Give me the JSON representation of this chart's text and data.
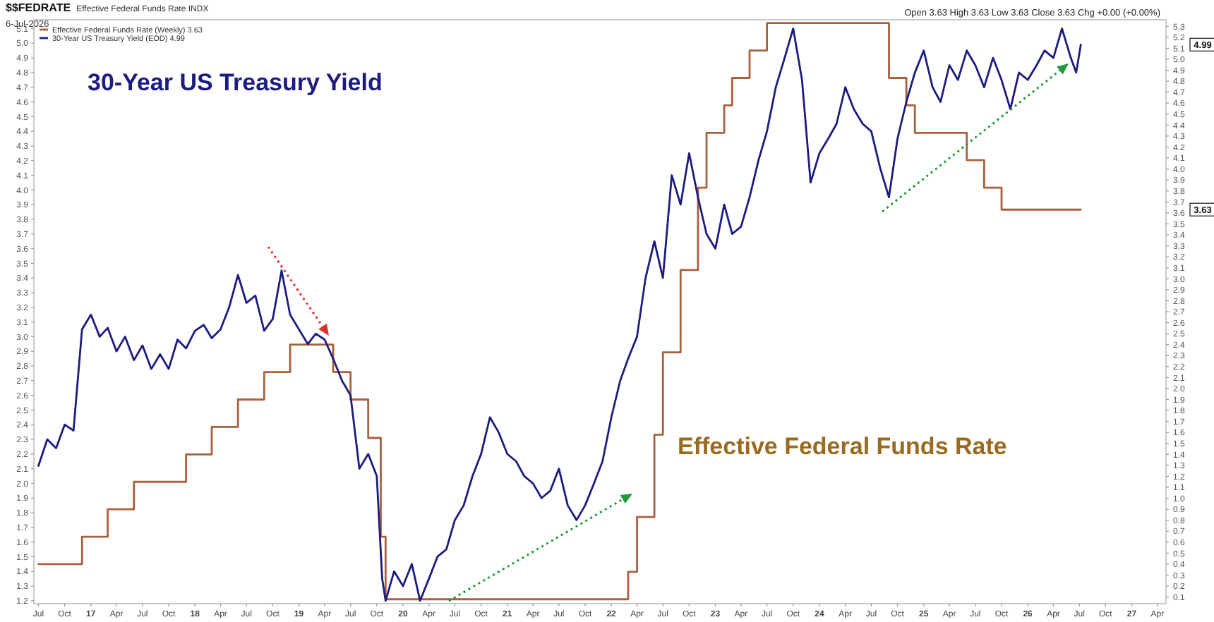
{
  "chart_data": {
    "type": "line",
    "title": "$$FEDRATE",
    "subtitle": "Effective Federal Funds Rate INDX",
    "annotations": [
      "6-Jul-2026",
      "Open 3.63 High 3.63 Low 3.63 Close 3.63 Chg +0.00 (+0.00%)",
      "30-Year US Treasury Yield",
      "Effective Federal Funds Rate",
      "3.63",
      "4.99"
    ],
    "legend": "top left",
    "grid": false,
    "xlim": [
      "2016-06-15",
      "2027-05-01"
    ],
    "xticks": [
      {
        "value": "2016-07",
        "label": "Jul"
      },
      {
        "value": "2016-10",
        "label": "Oct"
      },
      {
        "value": "2017-01",
        "label": "17"
      },
      {
        "value": "2017-04",
        "label": "Apr"
      },
      {
        "value": "2017-07",
        "label": "Jul"
      },
      {
        "value": "2017-10",
        "label": "Oct"
      },
      {
        "value": "2018-01",
        "label": "18"
      },
      {
        "value": "2018-04",
        "label": "Apr"
      },
      {
        "value": "2018-07",
        "label": "Jul"
      },
      {
        "value": "2018-10",
        "label": "Oct"
      },
      {
        "value": "2019-01",
        "label": "19"
      },
      {
        "value": "2019-04",
        "label": "Apr"
      },
      {
        "value": "2019-07",
        "label": "Jul"
      },
      {
        "value": "2019-10",
        "label": "Oct"
      },
      {
        "value": "2020-01",
        "label": "20"
      },
      {
        "value": "2020-04",
        "label": "Apr"
      },
      {
        "value": "2020-07",
        "label": "Jul"
      },
      {
        "value": "2020-10",
        "label": "Oct"
      },
      {
        "value": "2021-01",
        "label": "21"
      },
      {
        "value": "2021-04",
        "label": "Apr"
      },
      {
        "value": "2021-07",
        "label": "Jul"
      },
      {
        "value": "2021-10",
        "label": "Oct"
      },
      {
        "value": "2022-01",
        "label": "22"
      },
      {
        "value": "2022-04",
        "label": "Apr"
      },
      {
        "value": "2022-07",
        "label": "Jul"
      },
      {
        "value": "2022-10",
        "label": "Oct"
      },
      {
        "value": "2023-01",
        "label": "23"
      },
      {
        "value": "2023-04",
        "label": "Apr"
      },
      {
        "value": "2023-07",
        "label": "Jul"
      },
      {
        "value": "2023-10",
        "label": "Oct"
      },
      {
        "value": "2024-01",
        "label": "24"
      },
      {
        "value": "2024-04",
        "label": "Apr"
      },
      {
        "value": "2024-07",
        "label": "Jul"
      },
      {
        "value": "2024-10",
        "label": "Oct"
      },
      {
        "value": "2025-01",
        "label": "25"
      },
      {
        "value": "2025-04",
        "label": "Apr"
      },
      {
        "value": "2025-07",
        "label": "Jul"
      },
      {
        "value": "2025-10",
        "label": "Oct"
      },
      {
        "value": "2026-01",
        "label": "26"
      },
      {
        "value": "2026-04",
        "label": "Apr"
      },
      {
        "value": "2026-07",
        "label": "Jul"
      },
      {
        "value": "2026-10",
        "label": "Oct"
      },
      {
        "value": "2027-01",
        "label": "27"
      },
      {
        "value": "2027-04",
        "label": "Apr"
      }
    ],
    "ylim": [
      1.18,
      5.16
    ],
    "yticks": [
      1.2,
      1.3,
      1.4,
      1.5,
      1.6,
      1.7,
      1.8,
      1.9,
      {
        "value": 2,
        "label": "2.0"
      },
      2.1,
      2.2,
      2.3,
      2.4,
      2.5,
      2.6,
      2.7,
      2.8,
      2.9,
      {
        "value": 3,
        "label": "3.0"
      },
      3.1,
      3.2,
      3.3,
      3.4,
      3.5,
      3.6,
      3.7,
      3.8,
      3.9,
      {
        "value": 4,
        "label": "4.0"
      },
      4.1,
      4.2,
      4.3,
      4.4,
      4.5,
      4.6,
      4.7,
      4.8,
      4.9,
      {
        "value": 5,
        "label": "5.0"
      },
      5.1
    ],
    "y2lim": [
      0.04,
      5.36
    ],
    "y2ticks": [
      0.1,
      0.2,
      0.3,
      0.4,
      0.5,
      0.6,
      0.7,
      0.8,
      0.9,
      {
        "value": 1,
        "label": "1.0"
      },
      1.1,
      1.2,
      1.3,
      1.4,
      1.5,
      1.6,
      1.7,
      1.8,
      1.9,
      {
        "value": 2,
        "label": "2.0"
      },
      2.1,
      2.2,
      2.3,
      2.4,
      2.5,
      2.6,
      2.7,
      2.8,
      2.9,
      {
        "value": 3,
        "label": "3.0"
      },
      3.1,
      3.2,
      3.3,
      3.4,
      3.5,
      3.6,
      3.7,
      3.8,
      3.9,
      {
        "value": 4,
        "label": "4.0"
      },
      4.1,
      4.2,
      4.3,
      4.4,
      4.5,
      4.6,
      4.7,
      4.8,
      4.9,
      {
        "value": 5,
        "label": "5.0"
      },
      5.1,
      5.2,
      5.3
    ],
    "series": [
      {
        "name": "Effective Federal Funds Rate (Weekly) 3.63",
        "type": "step",
        "axis": "y2",
        "color": "#a9603c",
        "x": [
          "2016-07",
          "2016-12",
          "2017-03",
          "2017-06",
          "2017-12",
          "2018-03",
          "2018-06",
          "2018-09",
          "2018-12",
          "2019-05",
          "2019-07",
          "2019-09",
          "2019-10-15",
          "2019-11",
          "2022-03",
          "2022-04",
          "2022-06",
          "2022-07",
          "2022-09",
          "2022-11",
          "2022-12",
          "2023-02",
          "2023-03",
          "2023-05",
          "2023-07",
          "2024-09",
          "2024-11",
          "2024-12",
          "2025-06",
          "2025-08",
          "2025-10",
          "2026-07-06"
        ],
        "values": [
          0.4,
          0.65,
          0.9,
          1.15,
          1.4,
          1.65,
          1.9,
          2.15,
          2.4,
          2.15,
          1.9,
          1.55,
          0.65,
          0.08,
          0.33,
          0.83,
          1.58,
          2.33,
          3.08,
          3.83,
          4.33,
          4.58,
          4.83,
          5.08,
          5.33,
          4.83,
          4.58,
          4.33,
          4.08,
          3.83,
          3.63,
          3.63
        ]
      },
      {
        "name": "30-Year US Treasury Yield (EOD) 4.99",
        "color": "#1c1c80",
        "x": [
          "2016-07",
          "2016-08",
          "2016-09",
          "2016-10",
          "2016-11",
          "2016-12",
          "2017-01",
          "2017-02",
          "2017-03",
          "2017-04",
          "2017-05",
          "2017-06",
          "2017-07",
          "2017-08",
          "2017-09",
          "2017-10",
          "2017-11",
          "2017-12",
          "2018-01",
          "2018-02",
          "2018-03",
          "2018-04",
          "2018-05",
          "2018-06",
          "2018-07",
          "2018-08",
          "2018-09",
          "2018-10",
          "2018-11",
          "2018-12",
          "2019-01",
          "2019-02",
          "2019-03",
          "2019-04",
          "2019-05",
          "2019-06",
          "2019-07",
          "2019-08",
          "2019-09",
          "2019-10",
          "2019-10-20",
          "2019-11",
          "2019-12",
          "2020-01",
          "2020-02",
          "2020-03",
          "2020-04",
          "2020-05",
          "2020-06",
          "2020-07",
          "2020-08",
          "2020-09",
          "2020-10",
          "2020-11",
          "2020-12",
          "2021-01",
          "2021-02",
          "2021-03",
          "2021-04",
          "2021-05",
          "2021-06",
          "2021-07",
          "2021-08",
          "2021-09",
          "2021-10",
          "2021-11",
          "2021-12",
          "2022-01",
          "2022-02",
          "2022-03",
          "2022-04",
          "2022-05",
          "2022-06",
          "2022-07",
          "2022-08",
          "2022-09",
          "2022-10",
          "2022-11",
          "2022-12",
          "2023-01",
          "2023-02",
          "2023-03",
          "2023-04",
          "2023-05",
          "2023-06",
          "2023-07",
          "2023-08",
          "2023-09",
          "2023-10",
          "2023-11",
          "2023-12",
          "2024-01",
          "2024-02",
          "2024-03",
          "2024-04",
          "2024-05",
          "2024-06",
          "2024-07",
          "2024-08",
          "2024-09",
          "2024-10",
          "2024-11",
          "2024-12",
          "2025-01",
          "2025-02",
          "2025-03",
          "2025-04",
          "2025-05",
          "2025-06",
          "2025-07",
          "2025-08",
          "2025-09",
          "2025-10",
          "2025-11",
          "2025-12",
          "2026-01",
          "2026-02",
          "2026-03",
          "2026-04",
          "2026-05",
          "2026-06",
          "2026-06-20",
          "2026-07-06"
        ],
        "values": [
          2.12,
          2.3,
          2.24,
          2.4,
          2.36,
          3.05,
          3.15,
          3.0,
          3.06,
          2.9,
          3.0,
          2.84,
          2.94,
          2.78,
          2.88,
          2.78,
          2.98,
          2.92,
          3.04,
          3.08,
          2.99,
          3.05,
          3.2,
          3.42,
          3.23,
          3.28,
          3.04,
          3.12,
          3.45,
          3.15,
          3.05,
          2.95,
          3.02,
          2.98,
          2.85,
          2.7,
          2.6,
          2.1,
          2.2,
          2.05,
          1.35,
          1.2,
          1.4,
          1.3,
          1.45,
          1.2,
          1.35,
          1.5,
          1.55,
          1.75,
          1.85,
          2.05,
          2.2,
          2.45,
          2.35,
          2.2,
          2.15,
          2.05,
          2.0,
          1.9,
          1.95,
          2.1,
          1.85,
          1.75,
          1.85,
          2.0,
          2.15,
          2.45,
          2.7,
          2.85,
          3.0,
          3.4,
          3.65,
          3.4,
          4.1,
          3.9,
          4.25,
          3.95,
          3.7,
          3.6,
          3.9,
          3.7,
          3.75,
          3.95,
          4.2,
          4.4,
          4.7,
          4.9,
          5.1,
          4.75,
          4.05,
          4.25,
          4.35,
          4.45,
          4.7,
          4.55,
          4.45,
          4.4,
          4.15,
          3.95,
          4.35,
          4.6,
          4.8,
          4.95,
          4.7,
          4.6,
          4.85,
          4.75,
          4.95,
          4.85,
          4.7,
          4.9,
          4.75,
          4.55,
          4.8,
          4.75,
          4.85,
          4.95,
          4.9,
          5.1,
          4.9,
          4.8,
          4.99
        ]
      }
    ]
  }
}
